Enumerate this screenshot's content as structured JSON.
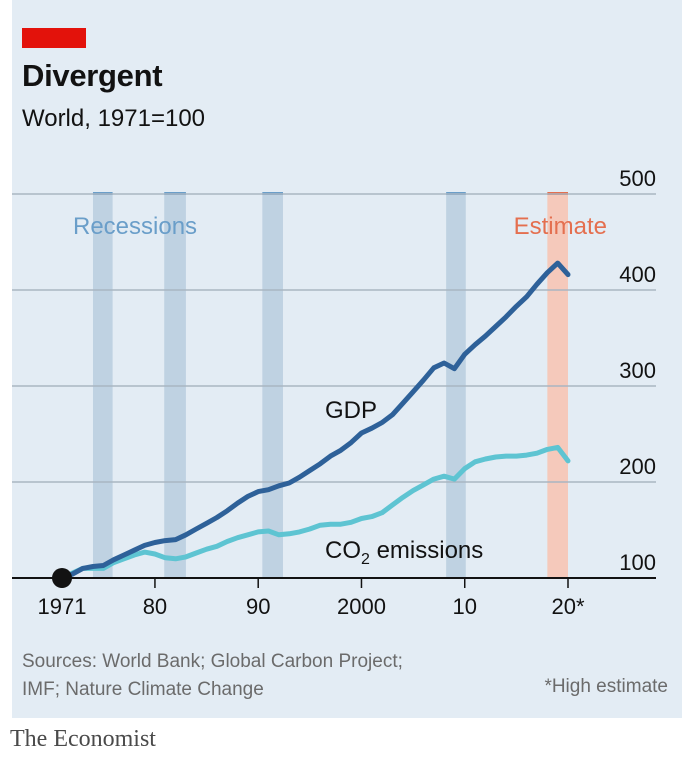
{
  "header": {
    "title": "Divergent",
    "subtitle": "World, 1971=100"
  },
  "footer": {
    "source_line1": "Sources: World Bank; Global Carbon Project;",
    "source_line2": "IMF; Nature Climate Change",
    "note": "*High estimate",
    "brand": "The Economist"
  },
  "colors": {
    "background": "#e3ecf4",
    "gdp": "#2e6199",
    "co2": "#5ec4d2",
    "recession_band": "#bfd2e2",
    "recession_label": "#6a9ec9",
    "estimate_band": "#f5c9bb",
    "estimate_label": "#e46f4f",
    "accent": "#e3120b"
  },
  "chart_data": {
    "type": "line",
    "x_domain": [
      1971,
      2020
    ],
    "ylim": [
      100,
      500
    ],
    "y_ticks": [
      100,
      200,
      300,
      400,
      500
    ],
    "x_ticks": [
      {
        "value": 1971,
        "label": "1971"
      },
      {
        "value": 1980,
        "label": "80"
      },
      {
        "value": 1990,
        "label": "90"
      },
      {
        "value": 2000,
        "label": "2000"
      },
      {
        "value": 2010,
        "label": "10"
      },
      {
        "value": 2020,
        "label": "20*"
      }
    ],
    "grid": true,
    "y_axis_side": "right",
    "start_marker": {
      "x": 1971,
      "y": 100
    },
    "annotations": {
      "recessions": "Recessions",
      "estimate": "Estimate"
    },
    "recessions": [
      [
        1974,
        1975.9
      ],
      [
        1980.9,
        1983
      ],
      [
        1990.4,
        1992.4
      ],
      [
        2008.2,
        2010.1
      ]
    ],
    "estimate_range": [
      2018,
      2020
    ],
    "series": [
      {
        "name": "GDP",
        "key": "gdp",
        "x": [
          1971,
          1972,
          1973,
          1974,
          1975,
          1976,
          1977,
          1978,
          1979,
          1980,
          1981,
          1982,
          1983,
          1984,
          1985,
          1986,
          1987,
          1988,
          1989,
          1990,
          1991,
          1992,
          1993,
          1994,
          1995,
          1996,
          1997,
          1998,
          1999,
          2000,
          2001,
          2002,
          2003,
          2004,
          2005,
          2006,
          2007,
          2008,
          2009,
          2010,
          2011,
          2012,
          2013,
          2014,
          2015,
          2016,
          2017,
          2018,
          2019,
          2020
        ],
        "y": [
          100,
          104,
          110,
          112,
          113,
          119,
          124,
          129,
          134,
          137,
          139,
          140,
          145,
          151,
          157,
          163,
          170,
          178,
          185,
          190,
          192,
          196,
          199,
          205,
          212,
          219,
          227,
          233,
          241,
          251,
          256,
          262,
          270,
          282,
          294,
          306,
          319,
          324,
          318,
          333,
          343,
          352,
          362,
          372,
          383,
          393,
          406,
          418,
          428,
          416
        ]
      },
      {
        "name_prefix": "CO",
        "name_sub": "2",
        "name_suffix": " emissions",
        "key": "co2",
        "x": [
          1971,
          1972,
          1973,
          1974,
          1975,
          1976,
          1977,
          1978,
          1979,
          1980,
          1981,
          1982,
          1983,
          1984,
          1985,
          1986,
          1987,
          1988,
          1989,
          1990,
          1991,
          1992,
          1993,
          1994,
          1995,
          1996,
          1997,
          1998,
          1999,
          2000,
          2001,
          2002,
          2003,
          2004,
          2005,
          2006,
          2007,
          2008,
          2009,
          2010,
          2011,
          2012,
          2013,
          2014,
          2015,
          2016,
          2017,
          2018,
          2019,
          2020
        ],
        "y": [
          100,
          105,
          110,
          110,
          110,
          116,
          120,
          124,
          127,
          125,
          121,
          120,
          122,
          126,
          130,
          133,
          138,
          142,
          145,
          148,
          149,
          145,
          146,
          148,
          151,
          155,
          156,
          156,
          158,
          162,
          164,
          168,
          176,
          184,
          191,
          197,
          203,
          206,
          203,
          214,
          221,
          224,
          226,
          227,
          227,
          228,
          230,
          234,
          236,
          222
        ]
      }
    ]
  }
}
